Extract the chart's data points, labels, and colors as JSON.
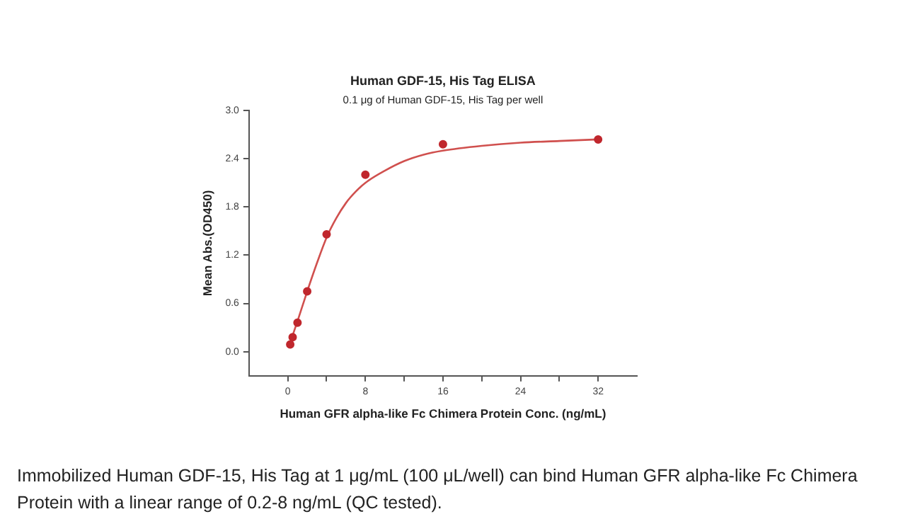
{
  "chart_data": {
    "type": "scatter",
    "title": "Human GDF-15, His Tag ELISA",
    "subtitle": "0.1 μg of Human GDF-15, His Tag per well",
    "xlabel": "Human GFR alpha-like Fc Chimera Protein Conc. (ng/mL)",
    "ylabel": "Mean Abs.(OD450)",
    "series": [
      {
        "color": "#c0272d",
        "marker": "circle",
        "x": [
          0.25,
          0.5,
          1,
          2,
          4,
          8,
          16,
          32
        ],
        "values": [
          0.09,
          0.18,
          0.36,
          0.75,
          1.46,
          2.2,
          2.58,
          2.64
        ]
      },
      {
        "type": "line",
        "color": "#d0504e",
        "x": [
          0.2,
          0.5,
          1,
          2,
          3,
          4,
          5,
          6,
          7,
          8,
          10,
          12,
          14,
          16,
          20,
          24,
          28,
          32
        ],
        "values": [
          0.07,
          0.2,
          0.38,
          0.75,
          1.1,
          1.42,
          1.66,
          1.85,
          1.99,
          2.1,
          2.25,
          2.37,
          2.45,
          2.5,
          2.56,
          2.6,
          2.62,
          2.64
        ]
      }
    ],
    "xlim": [
      -4,
      36
    ],
    "xticks": [
      0,
      {
        "value": 4,
        "label": null
      },
      8,
      {
        "value": 12,
        "label": null
      },
      16,
      {
        "value": 20,
        "label": null
      },
      24,
      {
        "value": 28,
        "label": null
      },
      32
    ],
    "ylim": [
      -0.3,
      3.0
    ],
    "yticks": [
      {
        "value": 0,
        "label": "0.0"
      },
      {
        "value": 0.6,
        "label": "0.6"
      },
      {
        "value": 1.2,
        "label": "1.2"
      },
      {
        "value": 1.8,
        "label": "1.8"
      },
      {
        "value": 2.4,
        "label": "2.4"
      },
      {
        "value": 3.0,
        "label": "3.0"
      }
    ],
    "grid": false,
    "legend": false,
    "annotations": [
      "Immobilized Human GDF-15, His Tag at 1 μg/mL (100 μL/well) can bind Human GFR alpha-like Fc Chimera Protein with a linear range of 0.2-8 ng/mL (QC tested)."
    ]
  }
}
